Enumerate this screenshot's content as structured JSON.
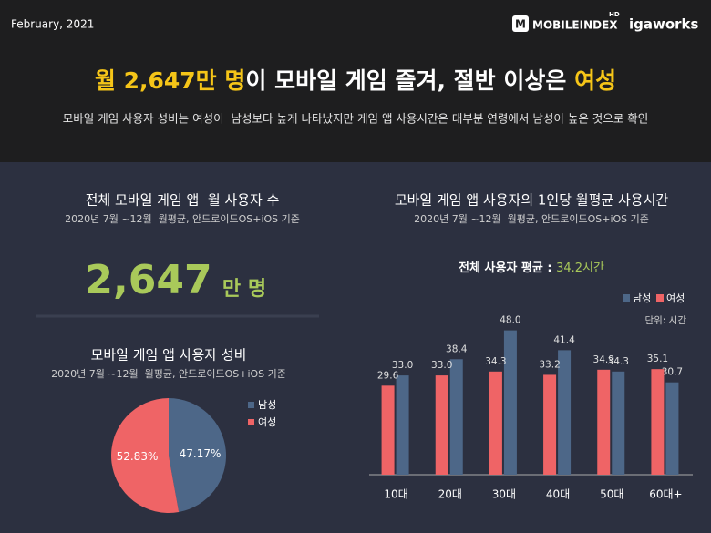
{
  "header": {
    "date": "February, 2021",
    "logo": "MOBILEINDEX",
    "logo_badge": "HD",
    "brand": "igaworks",
    "title": [
      "월 2,647만 명",
      "이 모바일 게임 즐겨, 절반 이상은 ",
      "여성"
    ],
    "subtitle": "모바일 게임 사용자 성비는 여성이  남성보다 높게 나타났지만 게임 앱 사용시간은 대부분 연령에서 남성이 높은 것으로 확인"
  },
  "kpi": {
    "title": "전체 모바일 게임 앱  월 사용자 수",
    "subtitle": "2020년 7월 ~12월  월평균, 안드로이드OS+iOS 기준",
    "value": "2,647",
    "unit": "만 명"
  },
  "chart_data": [
    {
      "type": "pie",
      "title": "모바일 게임 앱 사용자 성비",
      "subtitle": "2020년 7월 ~12월  월평균, 안드로이드OS+iOS 기준",
      "labels": [
        "남성",
        "여성"
      ],
      "values": [
        47.17,
        52.83
      ],
      "value_labels": [
        "47.17%",
        "52.83%"
      ],
      "colors": [
        "#4d6788",
        "#ef6466"
      ]
    },
    {
      "type": "bar",
      "title": "모바일 게임 앱 사용자의 1인당 월평균 사용시간",
      "subtitle": "2020년 7월 ~12월  월평균, 안드로이드OS+iOS 기준",
      "annotation": "전체 사용자 평균 : ",
      "annotation_value": "34.2시간",
      "unit_note": "단위: 시간",
      "categories": [
        "10대",
        "20대",
        "30대",
        "40대",
        "50대",
        "60대+"
      ],
      "series": [
        {
          "name": "남성",
          "color": "#4d6788",
          "values": [
            33.0,
            38.4,
            48.0,
            41.4,
            34.3,
            30.7
          ],
          "value_labels": [
            "33.0",
            "38.4",
            "48.0",
            "41.4",
            "34.3",
            "30.7"
          ]
        },
        {
          "name": "여성",
          "color": "#ef6466",
          "values": [
            29.6,
            33.0,
            34.3,
            33.2,
            34.9,
            35.1
          ],
          "value_labels": [
            "29.6",
            "33.0",
            "34.3",
            "33.2",
            "34.9",
            "35.1"
          ]
        }
      ]
    }
  ]
}
